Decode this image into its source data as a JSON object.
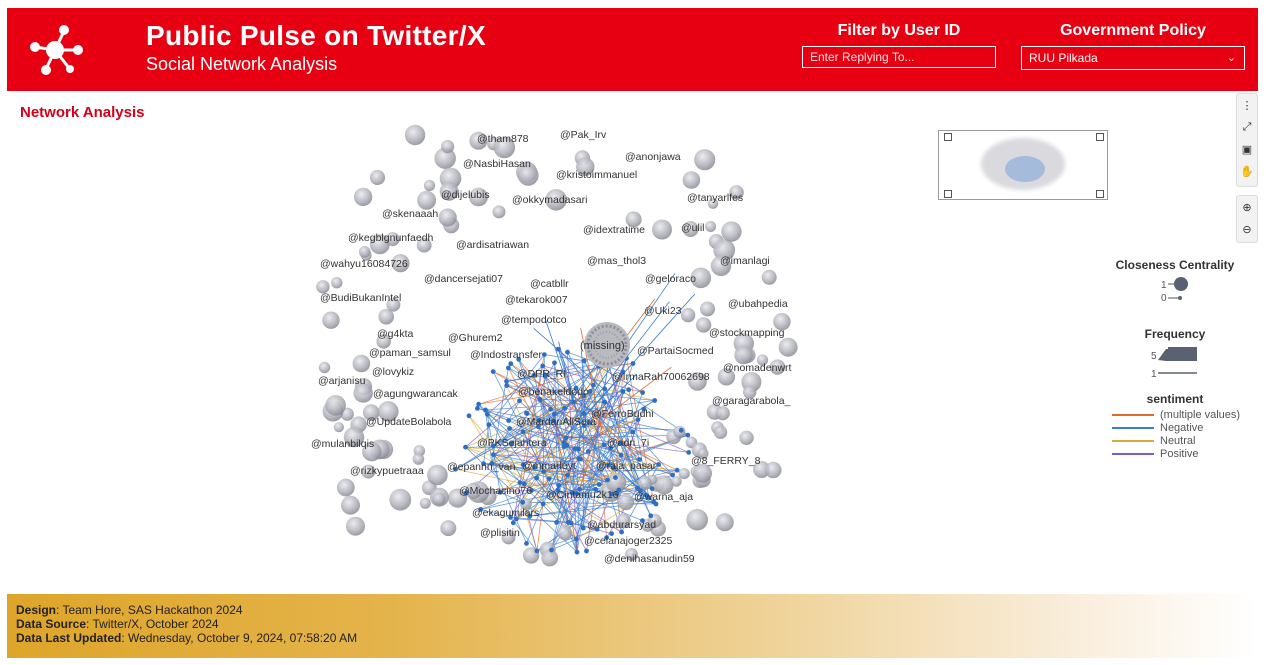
{
  "header": {
    "title": "Public Pulse on Twitter/X",
    "subtitle": "Social Network Analysis",
    "filter_user_label": "Filter by User ID",
    "filter_user_placeholder": "Enter Replying To...",
    "policy_label": "Government Policy",
    "policy_selected": "RUU Pilkada",
    "colors": {
      "brand": "#e60012"
    }
  },
  "section": {
    "title": "Network Analysis"
  },
  "toolbar": {
    "icons": [
      "more-icon",
      "fullscreen-icon",
      "select-icon",
      "pan-icon",
      "zoom-in-icon",
      "zoom-out-icon"
    ]
  },
  "network": {
    "center_node": "(missing)",
    "labels": [
      "@tham878",
      "@Pak_Irv",
      "@NasbiHasan",
      "@anonjawa",
      "@kristoimmanuel",
      "@dijelubis",
      "@okkymadasari",
      "@tanyarlfes",
      "@skenaaah",
      "@ulil",
      "@idextratime",
      "@kegblgnunfaedh",
      "@ardisatriawan",
      "@imanlagi",
      "@mas_thol3",
      "@wahyu16084726",
      "@dancersejati07",
      "@geloraco",
      "@catbllr",
      "@BudiBukanIntel",
      "@ubahpedia",
      "@tekarok007",
      "@Uki23",
      "@tempodotco",
      "@stockmapping",
      "@g4kta",
      "@Ghurem2",
      "@paman_samsul",
      "@PartaiSocmed",
      "@Indostransfer",
      "@nomadenwrt",
      "@lovykiz",
      "@DPR_RI",
      "@IrmaRah70062698",
      "@arjanisu",
      "@agungwarancak",
      "@benakeldodo",
      "@garagarabola_",
      "@FerroBudhi",
      "@UpdateBolabola",
      "@MardanAliSera",
      "@adri_7i",
      "@PKSejahtera",
      "@mulanbilqis",
      "@8_FERRY_8",
      "@epannn_van",
      "@mmarleyt",
      "@raja_pasar",
      "@rizkypuetraaa",
      "@Mochacino76",
      "@Cintamu2k16",
      "@warna_aja",
      "@ekagumilars",
      "@abdurarsyad",
      "@plisitin",
      "@celanajoger2325",
      "@denihasanudin59"
    ]
  },
  "legend": {
    "closeness_title": "Closeness Centrality",
    "closeness_max": "1",
    "closeness_min": "0",
    "frequency_title": "Frequency",
    "frequency_max": "5",
    "frequency_min": "1",
    "sentiment_title": "sentiment",
    "sentiment_items": [
      {
        "label": "(multiple values)",
        "color": "#e06a2b"
      },
      {
        "label": "Negative",
        "color": "#3a7dd0"
      },
      {
        "label": "Neutral",
        "color": "#d7a93a"
      },
      {
        "label": "Positive",
        "color": "#7e5cc7"
      }
    ]
  },
  "footer": {
    "design_label": "Design",
    "design_value": ": Team Hore, SAS Hackathon 2024",
    "source_label": "Data Source",
    "source_value": ": Twitter/X, October 2024",
    "updated_label": "Data Last Updated",
    "updated_value": ": Wednesday, October 9, 2024, 07:58:20 AM"
  }
}
